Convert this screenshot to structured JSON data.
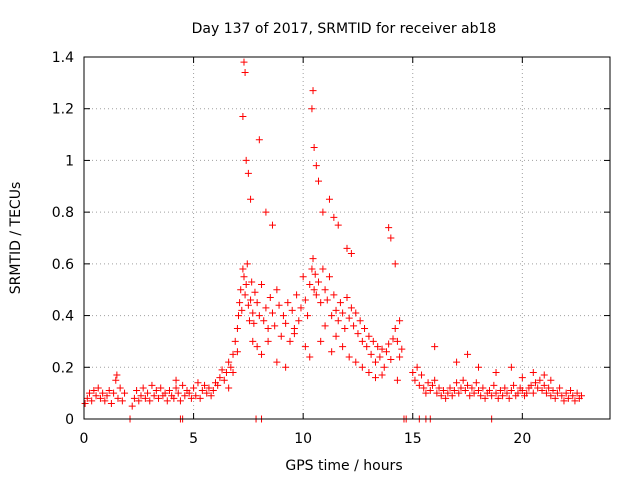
{
  "chart_data": {
    "type": "scatter",
    "title": "Day 137 of 2017, SRMTID for receiver ab18",
    "xlabel": "GPS time / hours",
    "ylabel": "SRMTID / TECUs",
    "xlim": [
      0,
      24
    ],
    "ylim": [
      0,
      1.4
    ],
    "xticks": [
      0,
      5,
      10,
      15,
      20
    ],
    "yticks": [
      0,
      0.2,
      0.4,
      0.6,
      0.8,
      1,
      1.2,
      1.4
    ],
    "xtick_labels": [
      "0",
      "5",
      "10",
      "15",
      "20"
    ],
    "ytick_labels": [
      "0",
      "0.2",
      "0.4",
      "0.6",
      "0.8",
      "1",
      "1.2",
      "1.4"
    ],
    "grid": true,
    "marker": "plus",
    "series": [
      {
        "name": "SRMTID",
        "color": "#ff0000",
        "x": [
          0.05,
          0.15,
          0.25,
          0.35,
          0.45,
          0.55,
          0.65,
          0.75,
          0.85,
          0.95,
          1.05,
          1.15,
          1.25,
          1.35,
          1.45,
          1.55,
          1.65,
          1.75,
          1.85,
          2.2,
          2.3,
          2.4,
          2.5,
          2.6,
          2.7,
          2.8,
          2.9,
          3.0,
          3.1,
          3.2,
          3.3,
          3.4,
          3.5,
          3.6,
          3.7,
          3.8,
          3.9,
          4.0,
          4.1,
          4.2,
          4.3,
          4.4,
          4.5,
          4.6,
          4.7,
          4.8,
          4.9,
          5.0,
          5.1,
          5.2,
          5.3,
          5.4,
          5.5,
          5.6,
          5.7,
          5.8,
          5.9,
          6.0,
          6.1,
          6.2,
          6.3,
          6.4,
          6.5,
          6.6,
          6.7,
          6.8,
          6.9,
          7.0,
          7.05,
          7.1,
          7.15,
          7.2,
          7.25,
          7.3,
          7.35,
          7.4,
          7.45,
          7.5,
          7.55,
          7.6,
          7.65,
          7.7,
          7.75,
          7.8,
          7.9,
          8.0,
          8.1,
          8.2,
          8.3,
          8.4,
          8.5,
          8.6,
          8.7,
          8.8,
          8.9,
          9.0,
          9.1,
          9.2,
          9.3,
          9.4,
          9.5,
          9.6,
          9.7,
          9.8,
          9.9,
          10.0,
          10.1,
          10.2,
          10.3,
          10.4,
          10.45,
          10.5,
          10.55,
          10.6,
          10.7,
          10.8,
          10.9,
          11.0,
          11.1,
          11.2,
          11.3,
          11.4,
          11.5,
          11.6,
          11.7,
          11.8,
          11.9,
          12.0,
          12.1,
          12.2,
          12.3,
          12.4,
          12.5,
          12.6,
          12.7,
          12.8,
          12.9,
          13.0,
          13.1,
          13.2,
          13.3,
          13.4,
          13.5,
          13.6,
          13.7,
          13.8,
          13.9,
          14.0,
          14.1,
          14.2,
          14.3,
          14.4,
          14.5,
          15.0,
          15.1,
          15.2,
          15.3,
          15.4,
          15.5,
          15.6,
          15.7,
          15.8,
          15.9,
          16.0,
          16.1,
          16.2,
          16.3,
          16.4,
          16.5,
          16.6,
          16.7,
          16.8,
          16.9,
          17.0,
          17.1,
          17.2,
          17.3,
          17.4,
          17.5,
          17.6,
          17.7,
          17.8,
          17.9,
          18.0,
          18.1,
          18.2,
          18.3,
          18.4,
          18.5,
          18.6,
          18.7,
          18.8,
          18.9,
          19.0,
          19.1,
          19.2,
          19.3,
          19.4,
          19.5,
          19.6,
          19.7,
          19.8,
          19.9,
          20.0,
          20.1,
          20.2,
          20.3,
          20.4,
          20.5,
          20.6,
          20.7,
          20.8,
          20.9,
          21.0,
          21.1,
          21.2,
          21.3,
          21.4,
          21.5,
          21.6,
          21.7,
          21.8,
          21.9,
          22.0,
          22.1,
          22.2,
          22.3,
          22.4,
          22.5,
          22.6,
          22.7,
          7.3,
          7.35,
          7.25,
          7.4,
          7.5,
          7.6,
          8.0,
          8.3,
          8.6,
          10.4,
          10.45,
          10.5,
          10.6,
          10.7,
          10.9,
          11.2,
          11.4,
          11.6,
          12.0,
          12.2,
          13.9,
          14.0,
          14.2,
          6.6,
          6.8,
          7.0,
          7.7,
          7.9,
          8.1,
          8.4,
          8.8,
          9.2,
          9.6,
          10.1,
          10.3,
          10.8,
          11.0,
          11.3,
          11.5,
          11.8,
          12.1,
          12.4,
          12.7,
          13.0,
          13.3,
          13.6,
          14.3,
          14.4,
          16.0,
          17.0,
          17.5,
          18.0,
          18.8,
          19.5,
          20.0,
          20.5,
          21.0,
          21.3,
          1.5,
          4.2,
          2.1,
          4.4,
          4.5,
          7.85,
          8.1,
          14.6,
          14.7,
          15.3,
          15.6,
          15.8,
          18.6
        ],
        "y": [
          0.06,
          0.08,
          0.1,
          0.07,
          0.11,
          0.09,
          0.12,
          0.08,
          0.1,
          0.07,
          0.09,
          0.11,
          0.06,
          0.1,
          0.15,
          0.08,
          0.12,
          0.07,
          0.1,
          0.05,
          0.08,
          0.11,
          0.07,
          0.09,
          0.12,
          0.08,
          0.1,
          0.07,
          0.13,
          0.09,
          0.11,
          0.08,
          0.12,
          0.09,
          0.1,
          0.07,
          0.11,
          0.09,
          0.08,
          0.12,
          0.1,
          0.07,
          0.13,
          0.09,
          0.11,
          0.1,
          0.08,
          0.12,
          0.09,
          0.14,
          0.08,
          0.11,
          0.13,
          0.1,
          0.12,
          0.09,
          0.11,
          0.14,
          0.13,
          0.16,
          0.19,
          0.15,
          0.18,
          0.22,
          0.2,
          0.25,
          0.3,
          0.35,
          0.4,
          0.45,
          0.5,
          0.42,
          0.58,
          0.55,
          0.48,
          0.52,
          0.6,
          0.44,
          0.38,
          0.46,
          0.53,
          0.41,
          0.37,
          0.49,
          0.45,
          0.4,
          0.52,
          0.38,
          0.43,
          0.35,
          0.47,
          0.41,
          0.36,
          0.5,
          0.44,
          0.32,
          0.4,
          0.37,
          0.45,
          0.3,
          0.42,
          0.35,
          0.48,
          0.38,
          0.43,
          0.55,
          0.46,
          0.4,
          0.52,
          0.58,
          0.62,
          0.5,
          0.56,
          0.48,
          0.53,
          0.45,
          0.58,
          0.5,
          0.46,
          0.55,
          0.4,
          0.48,
          0.42,
          0.38,
          0.45,
          0.41,
          0.35,
          0.47,
          0.39,
          0.43,
          0.36,
          0.41,
          0.33,
          0.38,
          0.3,
          0.35,
          0.28,
          0.32,
          0.25,
          0.3,
          0.22,
          0.28,
          0.24,
          0.27,
          0.2,
          0.26,
          0.29,
          0.23,
          0.31,
          0.35,
          0.3,
          0.38,
          0.27,
          0.18,
          0.15,
          0.2,
          0.13,
          0.17,
          0.12,
          0.1,
          0.14,
          0.11,
          0.13,
          0.15,
          0.1,
          0.12,
          0.09,
          0.11,
          0.08,
          0.1,
          0.12,
          0.09,
          0.11,
          0.14,
          0.1,
          0.12,
          0.15,
          0.11,
          0.13,
          0.09,
          0.12,
          0.1,
          0.14,
          0.11,
          0.09,
          0.12,
          0.08,
          0.1,
          0.11,
          0.09,
          0.13,
          0.1,
          0.08,
          0.11,
          0.09,
          0.12,
          0.1,
          0.08,
          0.11,
          0.13,
          0.09,
          0.1,
          0.12,
          0.11,
          0.09,
          0.1,
          0.12,
          0.13,
          0.1,
          0.14,
          0.12,
          0.15,
          0.11,
          0.13,
          0.1,
          0.12,
          0.09,
          0.11,
          0.08,
          0.1,
          0.12,
          0.09,
          0.07,
          0.1,
          0.08,
          0.11,
          0.09,
          0.07,
          0.1,
          0.08,
          0.09,
          1.38,
          1.34,
          1.17,
          1.0,
          0.95,
          0.85,
          1.08,
          0.8,
          0.75,
          1.2,
          1.27,
          1.05,
          0.98,
          0.92,
          0.8,
          0.85,
          0.78,
          0.75,
          0.66,
          0.64,
          0.74,
          0.7,
          0.6,
          0.12,
          0.18,
          0.26,
          0.3,
          0.28,
          0.25,
          0.3,
          0.22,
          0.2,
          0.33,
          0.28,
          0.24,
          0.3,
          0.36,
          0.26,
          0.32,
          0.28,
          0.24,
          0.22,
          0.2,
          0.18,
          0.16,
          0.17,
          0.15,
          0.24,
          0.28,
          0.22,
          0.25,
          0.2,
          0.18,
          0.2,
          0.16,
          0.18,
          0.17,
          0.15,
          0.17,
          0.15,
          0,
          0,
          0,
          0,
          0,
          0,
          0,
          0,
          0,
          0,
          0
        ]
      }
    ]
  }
}
